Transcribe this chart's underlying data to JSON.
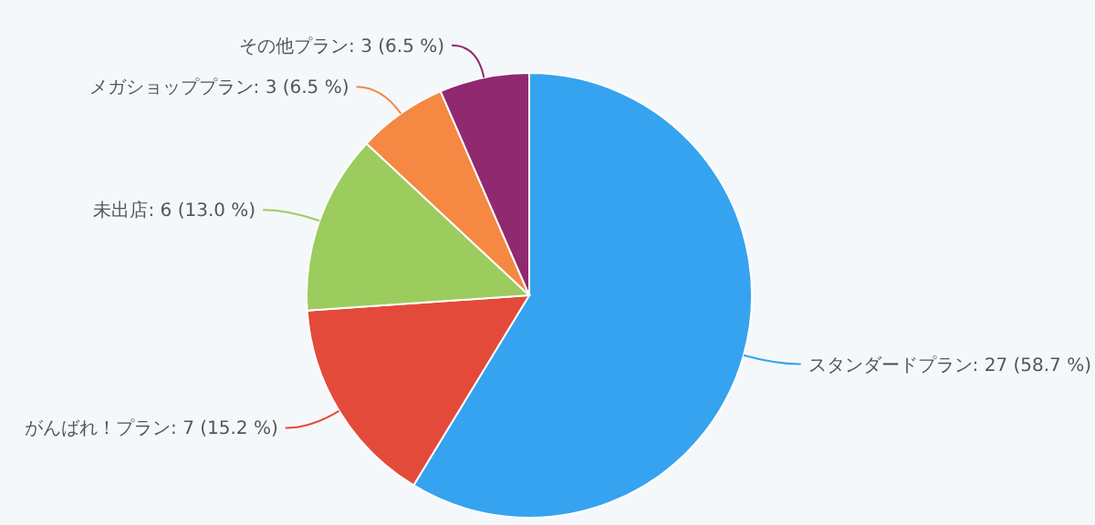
{
  "chart_data": {
    "type": "pie",
    "categories": [
      "スタンダードプラン",
      "がんばれ！プラン",
      "未出店",
      "メガショッププラン",
      "その他プラン"
    ],
    "values": [
      27,
      7,
      6,
      3,
      3
    ],
    "value_labels": [
      "27 (58.7 %)",
      "7 (15.2 %)",
      "6 (13.0 %)",
      "3 (6.5 %)",
      "3 (6.5 %)"
    ],
    "colors": [
      "#35a3f0",
      "#e44a3a",
      "#9ccc5e",
      "#f58842",
      "#90296f"
    ],
    "legend": false
  }
}
